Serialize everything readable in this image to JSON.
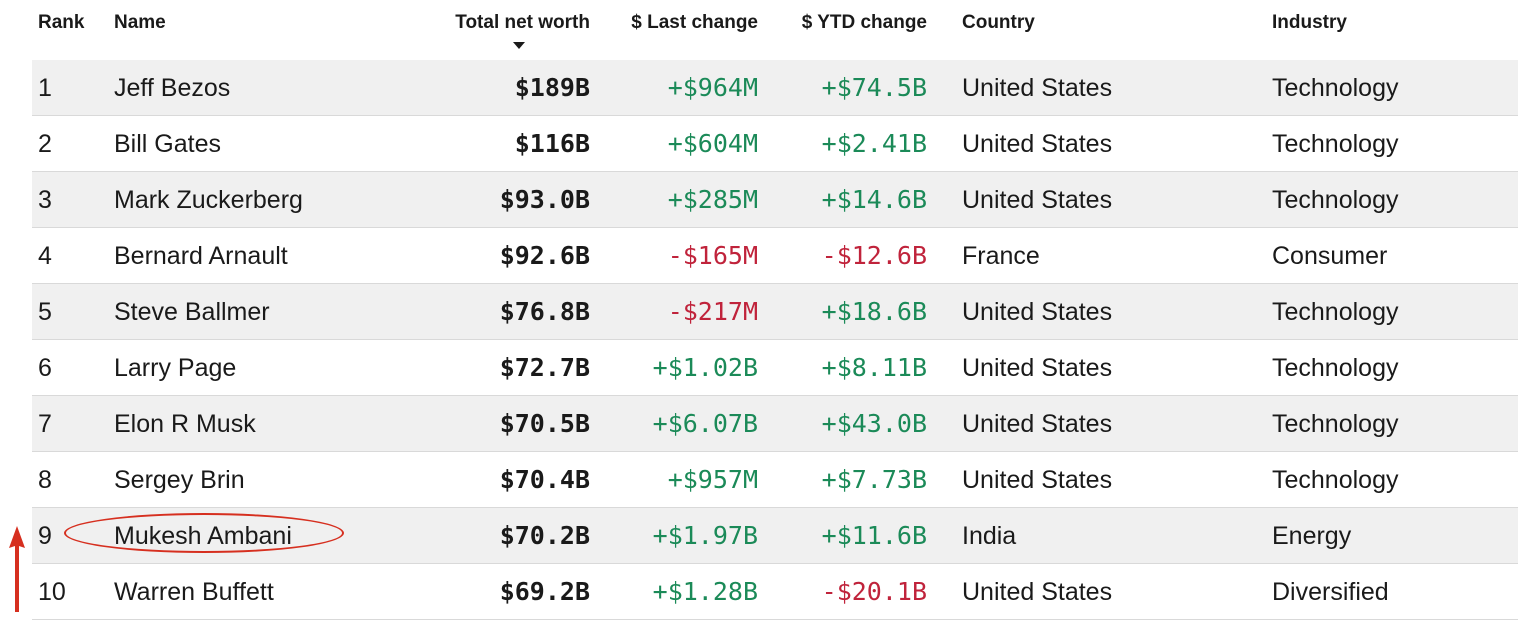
{
  "table": {
    "headers": {
      "rank": "Rank",
      "name": "Name",
      "worth": "Total net worth",
      "last_change": "$ Last change",
      "ytd_change": "$ YTD change",
      "country": "Country",
      "industry": "Industry"
    },
    "sort": {
      "column": "worth",
      "direction": "descending"
    },
    "rows": [
      {
        "rank": "1",
        "name": "Jeff Bezos",
        "worth": "$189B",
        "last": "+$964M",
        "ytd": "+$74.5B",
        "country": "United States",
        "industry": "Technology",
        "last_dir": "pos",
        "ytd_dir": "pos"
      },
      {
        "rank": "2",
        "name": "Bill Gates",
        "worth": "$116B",
        "last": "+$604M",
        "ytd": "+$2.41B",
        "country": "United States",
        "industry": "Technology",
        "last_dir": "pos",
        "ytd_dir": "pos"
      },
      {
        "rank": "3",
        "name": "Mark Zuckerberg",
        "worth": "$93.0B",
        "last": "+$285M",
        "ytd": "+$14.6B",
        "country": "United States",
        "industry": "Technology",
        "last_dir": "pos",
        "ytd_dir": "pos"
      },
      {
        "rank": "4",
        "name": "Bernard Arnault",
        "worth": "$92.6B",
        "last": "-$165M",
        "ytd": "-$12.6B",
        "country": "France",
        "industry": "Consumer",
        "last_dir": "neg",
        "ytd_dir": "neg"
      },
      {
        "rank": "5",
        "name": "Steve Ballmer",
        "worth": "$76.8B",
        "last": "-$217M",
        "ytd": "+$18.6B",
        "country": "United States",
        "industry": "Technology",
        "last_dir": "neg",
        "ytd_dir": "pos"
      },
      {
        "rank": "6",
        "name": "Larry Page",
        "worth": "$72.7B",
        "last": "+$1.02B",
        "ytd": "+$8.11B",
        "country": "United States",
        "industry": "Technology",
        "last_dir": "pos",
        "ytd_dir": "pos"
      },
      {
        "rank": "7",
        "name": "Elon R Musk",
        "worth": "$70.5B",
        "last": "+$6.07B",
        "ytd": "+$43.0B",
        "country": "United States",
        "industry": "Technology",
        "last_dir": "pos",
        "ytd_dir": "pos"
      },
      {
        "rank": "8",
        "name": "Sergey Brin",
        "worth": "$70.4B",
        "last": "+$957M",
        "ytd": "+$7.73B",
        "country": "United States",
        "industry": "Technology",
        "last_dir": "pos",
        "ytd_dir": "pos"
      },
      {
        "rank": "9",
        "name": "Mukesh Ambani",
        "worth": "$70.2B",
        "last": "+$1.97B",
        "ytd": "+$11.6B",
        "country": "India",
        "industry": "Energy",
        "last_dir": "pos",
        "ytd_dir": "pos"
      },
      {
        "rank": "10",
        "name": "Warren Buffett",
        "worth": "$69.2B",
        "last": "+$1.28B",
        "ytd": "-$20.1B",
        "country": "United States",
        "industry": "Diversified",
        "last_dir": "pos",
        "ytd_dir": "neg"
      }
    ]
  },
  "colors": {
    "positive": "#1b8a58",
    "negative": "#c0233b",
    "row_shade": "#f0f0f0",
    "annotation": "#d62f1f"
  },
  "icons": {
    "sort": "sort-descending-icon",
    "annotation_arrow": "red-up-arrow-icon"
  }
}
